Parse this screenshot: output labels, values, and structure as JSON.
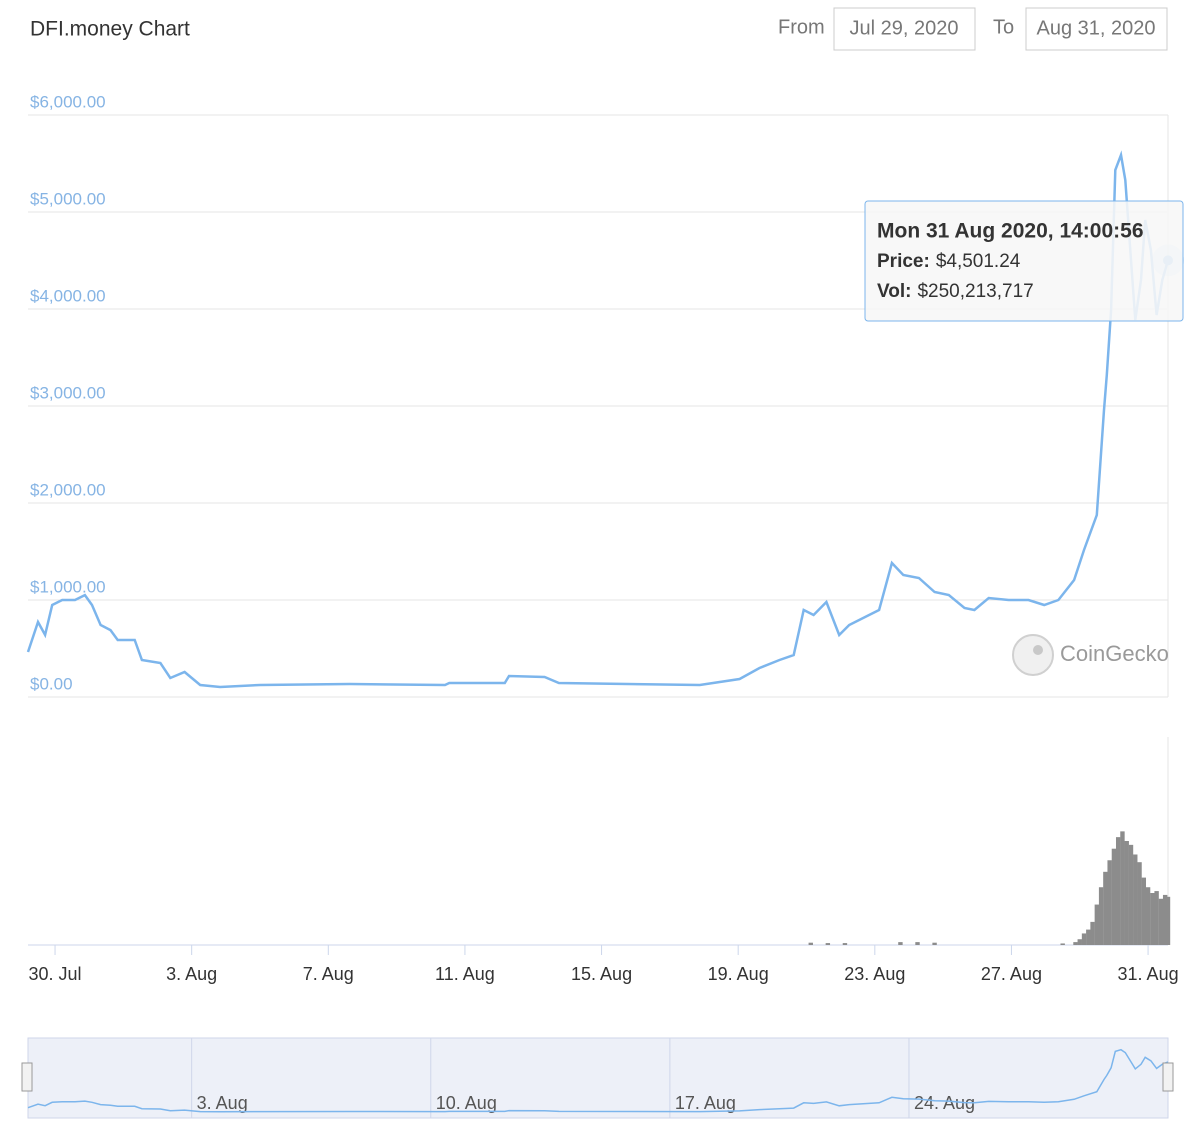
{
  "header": {
    "title": "DFI.money Chart",
    "from_label": "From",
    "from": "Jul 29, 2020",
    "to_label": "To",
    "to": "Aug 31, 2020"
  },
  "watermark": "CoinGecko",
  "chart_data": [
    {
      "type": "line",
      "color": "#7cb5ec",
      "grid": true,
      "x": [
        "2020-07-29T05:00",
        "2020-07-29T12:00",
        "2020-07-29T17:00",
        "2020-07-29T22:00",
        "2020-07-30T05:00",
        "2020-07-30T14:00",
        "2020-07-30T21:00",
        "2020-07-31T02:00",
        "2020-07-31T08:00",
        "2020-07-31T15:00",
        "2020-07-31T20:00",
        "2020-08-01T08:00",
        "2020-08-01T13:00",
        "2020-08-02T02:00",
        "2020-08-02T09:00",
        "2020-08-02T19:00",
        "2020-08-03T06:00",
        "2020-08-03T20:00",
        "2020-08-05T00:00",
        "2020-08-07T15:00",
        "2020-08-10T10:00",
        "2020-08-10T13:00",
        "2020-08-12T04:00",
        "2020-08-12T07:00",
        "2020-08-13T08:00",
        "2020-08-13T18:00",
        "2020-08-17T21:00",
        "2020-08-19T01:00",
        "2020-08-19T15:00",
        "2020-08-20T05:00",
        "2020-08-20T15:00",
        "2020-08-20T22:00",
        "2020-08-21T05:00",
        "2020-08-21T14:00",
        "2020-08-21T23:00",
        "2020-08-22T06:00",
        "2020-08-22T20:00",
        "2020-08-23T03:00",
        "2020-08-23T12:00",
        "2020-08-23T20:00",
        "2020-08-24T07:00",
        "2020-08-24T18:00",
        "2020-08-25T04:00",
        "2020-08-25T15:00",
        "2020-08-25T22:00",
        "2020-08-26T08:00",
        "2020-08-26T22:00",
        "2020-08-27T12:00",
        "2020-08-27T23:00",
        "2020-08-28T09:00",
        "2020-08-28T20:00",
        "2020-08-29T03:00",
        "2020-08-29T12:00",
        "2020-08-29T17:00",
        "2020-08-29T19:00",
        "2020-08-29T22:00",
        "2020-08-30T01:00",
        "2020-08-30T05:00",
        "2020-08-30T08:00",
        "2020-08-30T12:00",
        "2020-08-30T15:00",
        "2020-08-30T19:00",
        "2020-08-30T22:00",
        "2020-08-31T02:00",
        "2020-08-31T06:00",
        "2020-08-31T10:00",
        "2020-08-31T14:00"
      ],
      "values": [
        464,
        773,
        640,
        948,
        1000,
        1000,
        1050,
        948,
        742,
        690,
        588,
        588,
        381,
        350,
        196,
        258,
        124,
        103,
        124,
        134,
        124,
        144,
        144,
        216,
        206,
        144,
        124,
        186,
        299,
        381,
        433,
        897,
        845,
        979,
        639,
        742,
        845,
        897,
        1381,
        1258,
        1227,
        1082,
        1052,
        918,
        897,
        1021,
        1000,
        1000,
        948,
        1000,
        1206,
        1515,
        1876,
        2959,
        3320,
        3990,
        5433,
        5588,
        5330,
        4505,
        3887,
        4299,
        4918,
        4608,
        3938,
        4299,
        4501.24
      ],
      "xlim": [
        "2020-07-29T05:00",
        "2020-08-31T14:00"
      ],
      "ylim": [
        0,
        6000
      ],
      "yticks": [
        {
          "value": 0,
          "label": "$0.00"
        },
        {
          "value": 1000,
          "label": "$1,000.00"
        },
        {
          "value": 2000,
          "label": "$2,000.00"
        },
        {
          "value": 3000,
          "label": "$3,000.00"
        },
        {
          "value": 4000,
          "label": "$4,000.00"
        },
        {
          "value": 5000,
          "label": "$5,000.00"
        },
        {
          "value": 6000,
          "label": "$6,000.00"
        }
      ],
      "xticks": [
        {
          "value": "2020-07-30",
          "label": "30. Jul"
        },
        {
          "value": "2020-08-03",
          "label": "3. Aug"
        },
        {
          "value": "2020-08-07",
          "label": "7. Aug"
        },
        {
          "value": "2020-08-11",
          "label": "11. Aug"
        },
        {
          "value": "2020-08-15",
          "label": "15. Aug"
        },
        {
          "value": "2020-08-19",
          "label": "19. Aug"
        },
        {
          "value": "2020-08-23",
          "label": "23. Aug"
        },
        {
          "value": "2020-08-27",
          "label": "27. Aug"
        },
        {
          "value": "2020-08-31",
          "label": "31. Aug"
        }
      ],
      "navigator_xticks": [
        {
          "value": "2020-08-03",
          "label": "3. Aug"
        },
        {
          "value": "2020-08-10",
          "label": "10. Aug"
        },
        {
          "value": "2020-08-17",
          "label": "17. Aug"
        },
        {
          "value": "2020-08-24",
          "label": "24. Aug"
        }
      ],
      "tooltip": {
        "title": "Mon 31 Aug 2020, 14:00:56",
        "price_label": "Price:",
        "price": {
          "value": 4501.24,
          "label": "$4,501.24"
        },
        "vol_label": "Vol:",
        "vol": {
          "value": 250213717,
          "label": "$250,213,717"
        }
      }
    },
    {
      "type": "bar",
      "color": "#8c8c8c",
      "x": [
        "2020-08-21T03:00",
        "2020-08-21T15:00",
        "2020-08-22T03:00",
        "2020-08-23T18:00",
        "2020-08-24T06:00",
        "2020-08-24T18:00",
        "2020-08-28T12:00",
        "2020-08-28T21:00",
        "2020-08-29T00:00",
        "2020-08-29T03:00",
        "2020-08-29T06:00",
        "2020-08-29T09:00",
        "2020-08-29T12:00",
        "2020-08-29T15:00",
        "2020-08-29T18:00",
        "2020-08-29T21:00",
        "2020-08-30T00:00",
        "2020-08-30T03:00",
        "2020-08-30T06:00",
        "2020-08-30T09:00",
        "2020-08-30T12:00",
        "2020-08-30T15:00",
        "2020-08-30T18:00",
        "2020-08-30T21:00",
        "2020-08-31T00:00",
        "2020-08-31T03:00",
        "2020-08-31T06:00",
        "2020-08-31T09:00",
        "2020-08-31T12:00",
        "2020-08-31T14:00"
      ],
      "values": [
        12000000,
        10000000,
        10000000,
        15000000,
        15000000,
        12000000,
        8000000,
        15000000,
        30000000,
        60000000,
        80000000,
        120000000,
        210000000,
        300000000,
        380000000,
        440000000,
        500000000,
        560000000,
        590000000,
        540000000,
        520000000,
        470000000,
        430000000,
        350000000,
        300000000,
        270000000,
        280000000,
        240000000,
        260000000,
        250213717
      ],
      "xlim": [
        "2020-07-29T05:00",
        "2020-08-31T14:00"
      ],
      "ylim": [
        0,
        1080000000
      ]
    }
  ]
}
